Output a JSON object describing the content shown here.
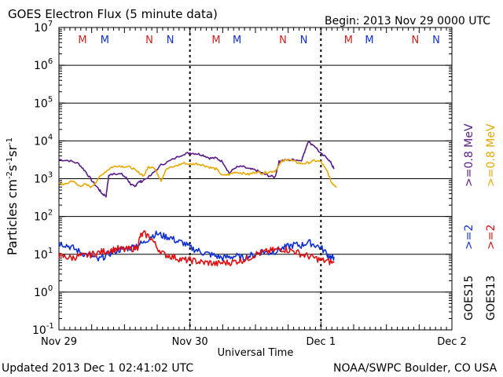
{
  "header": {
    "title": "GOES Electron Flux (5 minute data)",
    "begin": "Begin: 2013 Nov 29 0000 UTC"
  },
  "footer": {
    "updated": "Updated 2013 Dec  1 02:41:02 UTC",
    "credit": "NOAA/SWPC Boulder, CO USA"
  },
  "colors": {
    "goes15_08": "#5a1a8a",
    "goes13_08": "#e8a800",
    "goes15_2": "#1030d0",
    "goes13_2": "#e01010",
    "marker_m": "#d02020",
    "marker_n_blue": "#1030d0"
  },
  "legend": {
    "s1": ">=0.8 MeV",
    "s2": ">=0.8 MeV",
    "s3": ">=2",
    "s4": ">=2",
    "sat1": "GOES15",
    "sat2": "GOES13"
  },
  "chart_data": {
    "type": "line",
    "title": "GOES Electron Flux (5 minute data)",
    "xlabel": "Universal Time",
    "ylabel": "Particles cm-2s-1sr-1",
    "yscale": "log",
    "ylim": [
      0.1,
      10000000
    ],
    "xlim": [
      0,
      3
    ],
    "x_tick_labels": [
      "Nov 29",
      "Nov 30",
      "Dec 1",
      "Dec 2"
    ],
    "y_tick_labels": [
      {
        "base": "10",
        "exp": "7"
      },
      {
        "base": "10",
        "exp": "6"
      },
      {
        "base": "10",
        "exp": "5"
      },
      {
        "base": "10",
        "exp": "4"
      },
      {
        "base": "10",
        "exp": "3"
      },
      {
        "base": "10",
        "exp": "2"
      },
      {
        "base": "10",
        "exp": "1"
      },
      {
        "base": "10",
        "exp": "0"
      },
      {
        "base": "10",
        "exp": "-1"
      }
    ],
    "ylabel_parts": {
      "main": "Particles cm",
      "e1": "-2",
      "s": "s",
      "e2": "-1",
      "sr": "sr",
      "e3": "-1"
    },
    "threshold": 1000,
    "day_markers": [
      {
        "label": "M",
        "x": 0.18,
        "color": "#d02020"
      },
      {
        "label": "M",
        "x": 0.35,
        "color": "#1030d0"
      },
      {
        "label": "N",
        "x": 0.69,
        "color": "#d02020"
      },
      {
        "label": "N",
        "x": 0.85,
        "color": "#1030d0"
      },
      {
        "label": "M",
        "x": 1.2,
        "color": "#d02020"
      },
      {
        "label": "M",
        "x": 1.36,
        "color": "#1030d0"
      },
      {
        "label": "N",
        "x": 1.71,
        "color": "#d02020"
      },
      {
        "label": "N",
        "x": 1.87,
        "color": "#1030d0"
      },
      {
        "label": "M",
        "x": 2.21,
        "color": "#d02020"
      },
      {
        "label": "M",
        "x": 2.37,
        "color": "#1030d0"
      },
      {
        "label": "N",
        "x": 2.72,
        "color": "#d02020"
      },
      {
        "label": "N",
        "x": 2.88,
        "color": "#1030d0"
      }
    ],
    "series": [
      {
        "name": "GOES15 >=0.8 MeV",
        "color": "#5a1a8a",
        "points": [
          [
            0,
            3200
          ],
          [
            0.08,
            3000
          ],
          [
            0.15,
            2500
          ],
          [
            0.2,
            1600
          ],
          [
            0.25,
            900
          ],
          [
            0.3,
            550
          ],
          [
            0.33,
            400
          ],
          [
            0.36,
            350
          ],
          [
            0.38,
            1200
          ],
          [
            0.42,
            1400
          ],
          [
            0.48,
            1300
          ],
          [
            0.52,
            1000
          ],
          [
            0.55,
            700
          ],
          [
            0.58,
            600
          ],
          [
            0.6,
            800
          ],
          [
            0.63,
            850
          ],
          [
            0.7,
            1200
          ],
          [
            0.78,
            2300
          ],
          [
            0.85,
            3000
          ],
          [
            0.95,
            4500
          ],
          [
            1.0,
            4800
          ],
          [
            1.05,
            4600
          ],
          [
            1.1,
            4200
          ],
          [
            1.15,
            3500
          ],
          [
            1.2,
            3500
          ],
          [
            1.25,
            2800
          ],
          [
            1.3,
            1400
          ],
          [
            1.35,
            2000
          ],
          [
            1.4,
            2100
          ],
          [
            1.45,
            1800
          ],
          [
            1.5,
            1700
          ],
          [
            1.55,
            1400
          ],
          [
            1.6,
            1200
          ],
          [
            1.65,
            1100
          ],
          [
            1.68,
            2800
          ],
          [
            1.7,
            3000
          ],
          [
            1.75,
            3100
          ],
          [
            1.8,
            3200
          ],
          [
            1.85,
            3000
          ],
          [
            1.87,
            4500
          ],
          [
            1.9,
            9500
          ],
          [
            1.95,
            7500
          ],
          [
            2.0,
            4500
          ],
          [
            2.05,
            3500
          ],
          [
            2.08,
            2500
          ],
          [
            2.1,
            1800
          ]
        ]
      },
      {
        "name": "GOES13 >=0.8 MeV",
        "color": "#e8a800",
        "points": [
          [
            0,
            750
          ],
          [
            0.05,
            700
          ],
          [
            0.1,
            900
          ],
          [
            0.15,
            650
          ],
          [
            0.2,
            700
          ],
          [
            0.25,
            600
          ],
          [
            0.3,
            1000
          ],
          [
            0.35,
            1500
          ],
          [
            0.4,
            2000
          ],
          [
            0.45,
            2200
          ],
          [
            0.5,
            2100
          ],
          [
            0.55,
            2000
          ],
          [
            0.6,
            1500
          ],
          [
            0.65,
            1200
          ],
          [
            0.68,
            2000
          ],
          [
            0.72,
            2100
          ],
          [
            0.75,
            1400
          ],
          [
            0.78,
            900
          ],
          [
            0.82,
            1800
          ],
          [
            0.9,
            2200
          ],
          [
            0.95,
            2600
          ],
          [
            1.0,
            2400
          ],
          [
            1.05,
            2500
          ],
          [
            1.1,
            2300
          ],
          [
            1.15,
            2000
          ],
          [
            1.2,
            1800
          ],
          [
            1.25,
            1200
          ],
          [
            1.3,
            1300
          ],
          [
            1.35,
            1500
          ],
          [
            1.4,
            1400
          ],
          [
            1.45,
            1300
          ],
          [
            1.5,
            1500
          ],
          [
            1.55,
            1400
          ],
          [
            1.6,
            1500
          ],
          [
            1.65,
            1600
          ],
          [
            1.7,
            2800
          ],
          [
            1.75,
            3300
          ],
          [
            1.8,
            2800
          ],
          [
            1.85,
            2500
          ],
          [
            1.9,
            2600
          ],
          [
            1.95,
            3000
          ],
          [
            2.0,
            2800
          ],
          [
            2.05,
            1500
          ],
          [
            2.08,
            800
          ],
          [
            2.1,
            700
          ],
          [
            2.12,
            600
          ]
        ]
      },
      {
        "name": "GOES15 >=2",
        "color": "#1030d0",
        "points": [
          [
            0,
            20
          ],
          [
            0.05,
            18
          ],
          [
            0.1,
            15
          ],
          [
            0.15,
            12
          ],
          [
            0.2,
            10
          ],
          [
            0.25,
            9
          ],
          [
            0.3,
            7
          ],
          [
            0.35,
            9
          ],
          [
            0.4,
            11
          ],
          [
            0.45,
            13
          ],
          [
            0.5,
            14
          ],
          [
            0.55,
            15
          ],
          [
            0.6,
            18
          ],
          [
            0.65,
            20
          ],
          [
            0.7,
            30
          ],
          [
            0.75,
            35
          ],
          [
            0.8,
            30
          ],
          [
            0.85,
            28
          ],
          [
            0.9,
            22
          ],
          [
            0.95,
            20
          ],
          [
            1.0,
            15
          ],
          [
            1.05,
            13
          ],
          [
            1.1,
            11
          ],
          [
            1.15,
            10
          ],
          [
            1.2,
            9
          ],
          [
            1.25,
            8
          ],
          [
            1.3,
            8.5
          ],
          [
            1.35,
            9
          ],
          [
            1.4,
            8
          ],
          [
            1.45,
            9
          ],
          [
            1.5,
            10
          ],
          [
            1.55,
            12
          ],
          [
            1.6,
            11
          ],
          [
            1.65,
            12
          ],
          [
            1.7,
            14
          ],
          [
            1.75,
            16
          ],
          [
            1.8,
            18
          ],
          [
            1.85,
            17
          ],
          [
            1.9,
            21
          ],
          [
            1.95,
            18
          ],
          [
            2.0,
            15
          ],
          [
            2.05,
            10
          ],
          [
            2.08,
            8
          ],
          [
            2.1,
            8.5
          ]
        ]
      },
      {
        "name": "GOES13 >=2",
        "color": "#e01010",
        "points": [
          [
            0,
            9
          ],
          [
            0.05,
            8.5
          ],
          [
            0.1,
            8
          ],
          [
            0.15,
            9
          ],
          [
            0.2,
            9
          ],
          [
            0.25,
            10
          ],
          [
            0.3,
            11
          ],
          [
            0.35,
            12
          ],
          [
            0.4,
            13
          ],
          [
            0.45,
            14
          ],
          [
            0.5,
            13
          ],
          [
            0.55,
            14
          ],
          [
            0.6,
            15
          ],
          [
            0.62,
            30
          ],
          [
            0.65,
            35
          ],
          [
            0.7,
            28
          ],
          [
            0.75,
            15
          ],
          [
            0.8,
            10
          ],
          [
            0.85,
            9
          ],
          [
            0.9,
            8
          ],
          [
            0.95,
            7
          ],
          [
            1.0,
            7
          ],
          [
            1.05,
            6.5
          ],
          [
            1.1,
            6
          ],
          [
            1.15,
            6
          ],
          [
            1.2,
            5.5
          ],
          [
            1.25,
            6
          ],
          [
            1.3,
            6
          ],
          [
            1.35,
            6.5
          ],
          [
            1.4,
            7
          ],
          [
            1.45,
            8
          ],
          [
            1.5,
            10
          ],
          [
            1.55,
            11
          ],
          [
            1.6,
            12
          ],
          [
            1.65,
            13
          ],
          [
            1.7,
            14
          ],
          [
            1.75,
            13
          ],
          [
            1.8,
            12
          ],
          [
            1.85,
            10
          ],
          [
            1.9,
            9
          ],
          [
            1.95,
            8
          ],
          [
            2.0,
            7
          ],
          [
            2.05,
            6.5
          ],
          [
            2.1,
            6
          ]
        ]
      }
    ]
  }
}
